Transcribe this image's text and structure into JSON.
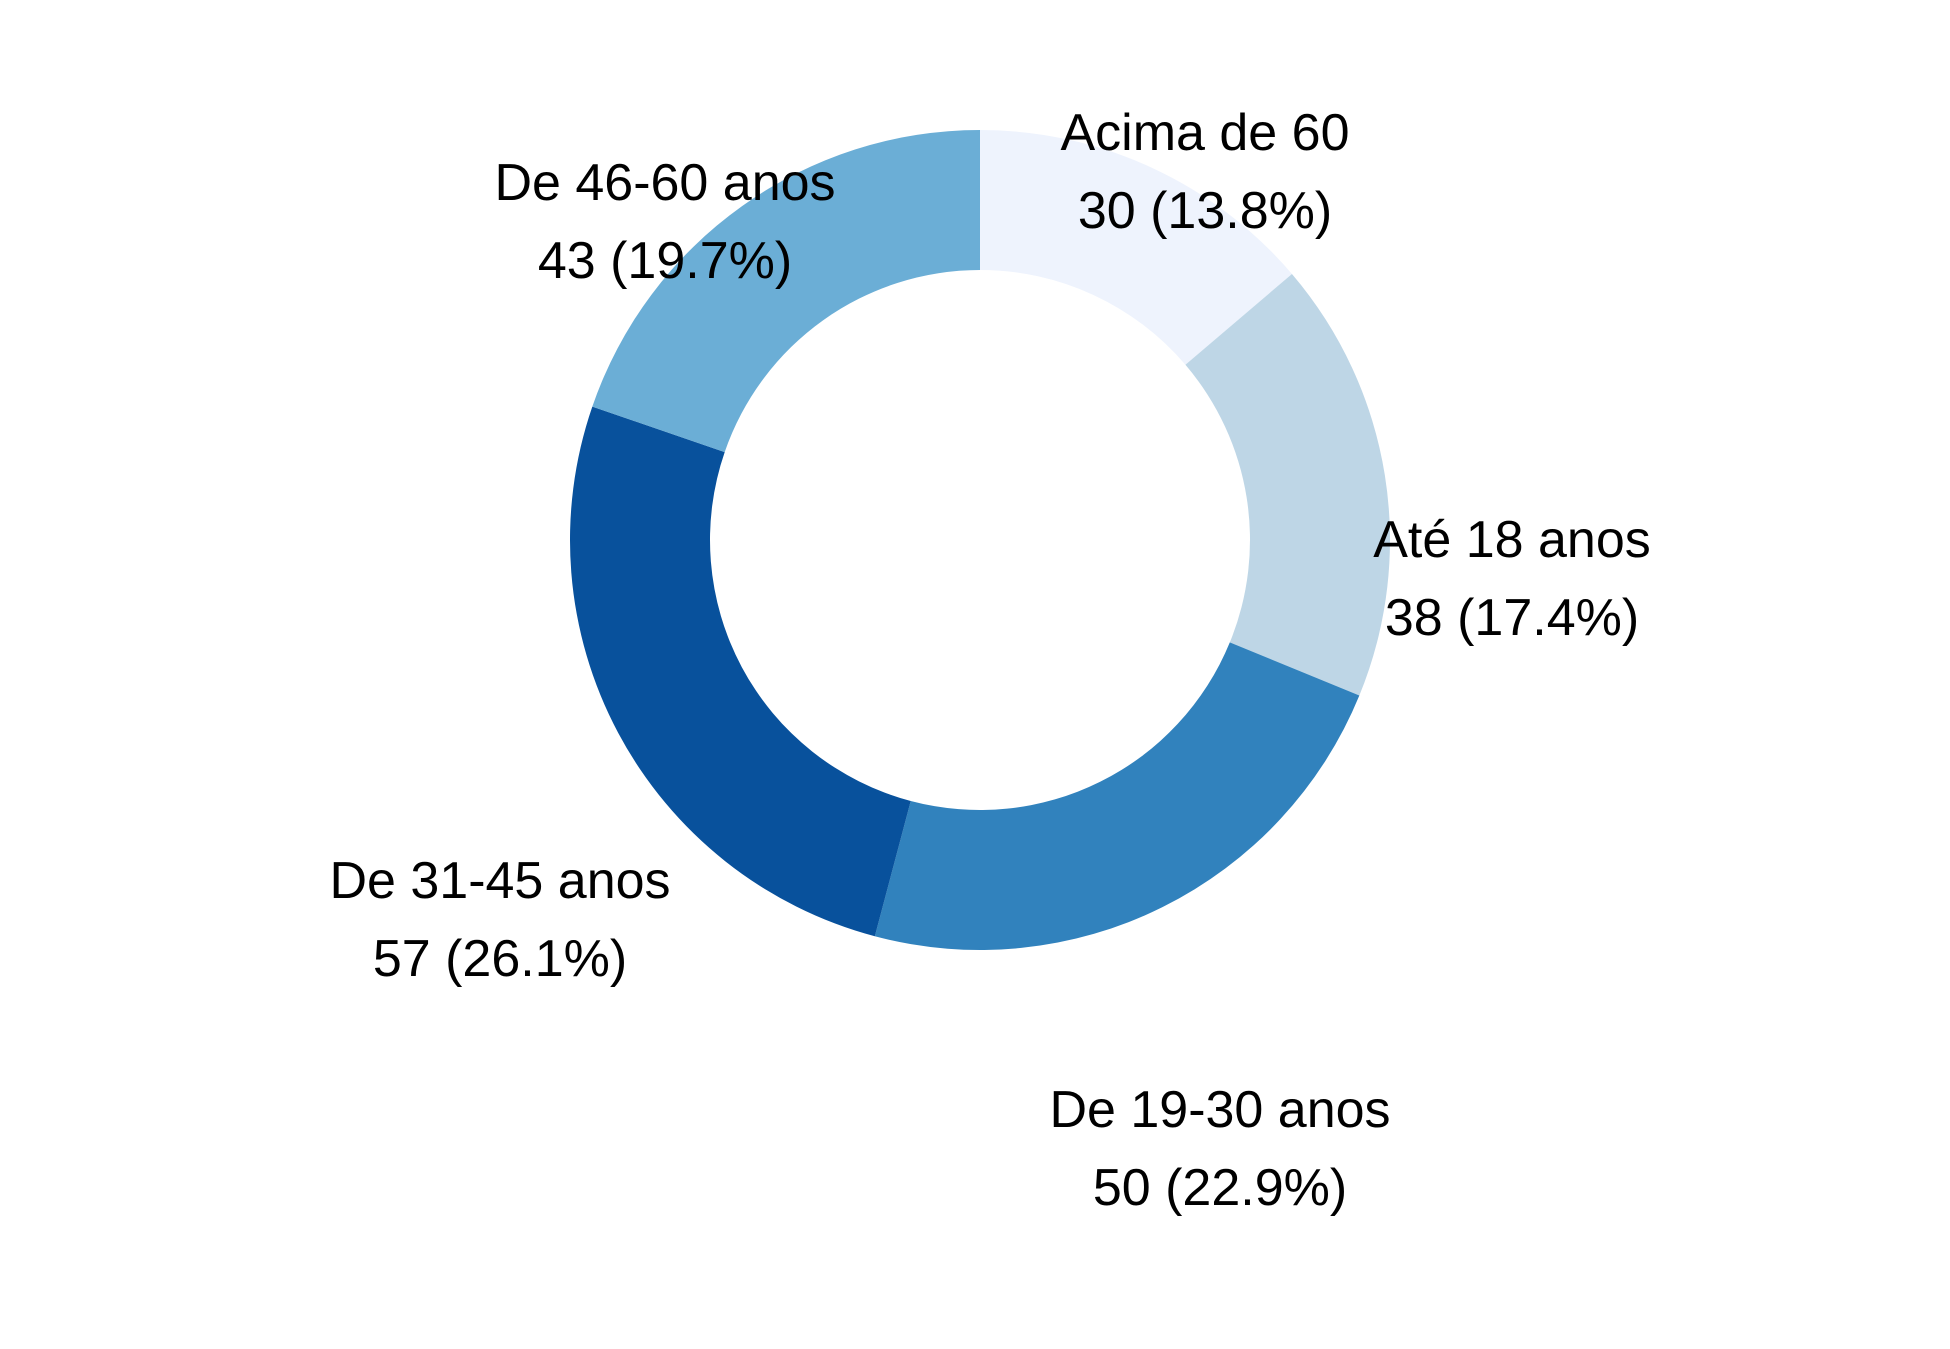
{
  "chart_data": {
    "type": "pie",
    "style": "donut",
    "title": "",
    "start_angle": "top, clockwise",
    "slices": [
      {
        "label": "Acima de 60",
        "value": 30,
        "percent_text": "30 (13.8%)",
        "color": "#EEF3FD"
      },
      {
        "label": "Até 18 anos",
        "value": 38,
        "percent_text": "38 (17.4%)",
        "color": "#BED6E6"
      },
      {
        "label": "De 19-30 anos",
        "value": 50,
        "percent_text": "50 (22.9%)",
        "color": "#3182BD"
      },
      {
        "label": "De 31-45 anos",
        "value": 57,
        "percent_text": "57 (26.1%)",
        "color": "#08519C"
      },
      {
        "label": "De 46-60 anos",
        "value": 43,
        "percent_text": "43 (19.7%)",
        "color": "#6BAED6"
      }
    ]
  }
}
